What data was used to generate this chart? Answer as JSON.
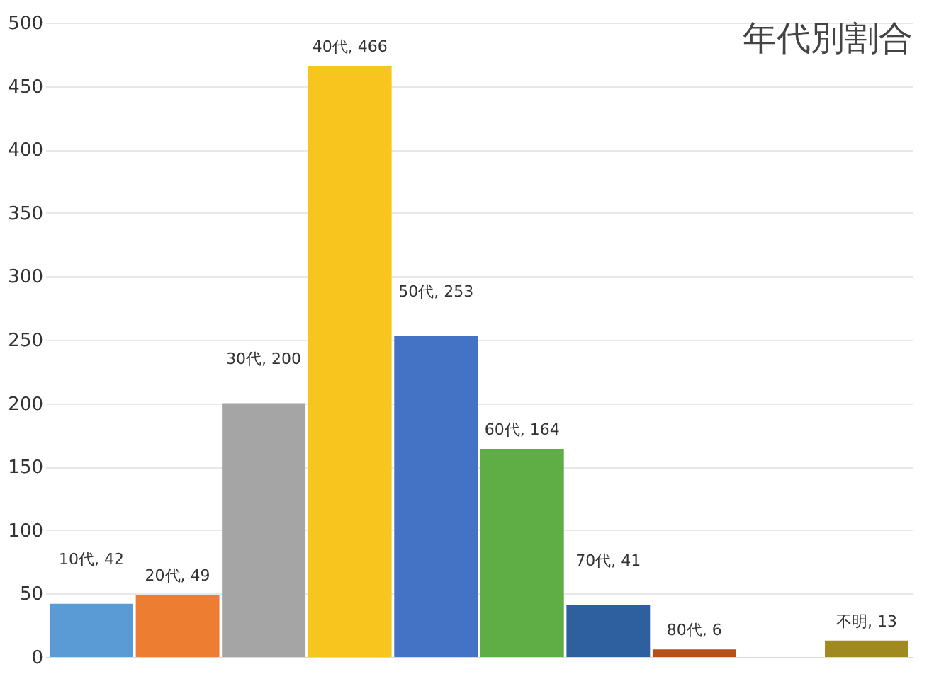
{
  "chart_data": {
    "type": "bar",
    "title": "年代別割合",
    "categories": [
      null,
      null,
      null,
      null,
      null,
      null,
      null,
      null,
      null,
      null
    ],
    "values": [
      42,
      49,
      200,
      466,
      253,
      164,
      41,
      6,
      null,
      13
    ],
    "colors": [
      "#5b9bd5",
      "#ed7d31",
      "#a5a5a5",
      "#f7c51e",
      "#4472c4",
      "#5fae45",
      "#2e5f9e",
      "#b5501a",
      "#cccccc",
      "#a08a20"
    ],
    "value_labels": [
      "10代, 42",
      "20代, 49",
      "30代, 200",
      "40代, 466",
      "50代, 253",
      "60代, 164",
      "70代, 41",
      "80代, 6",
      null,
      "不明, 13"
    ],
    "ylim": [
      0,
      500
    ],
    "yticks": [
      0,
      50,
      100,
      150,
      200,
      250,
      300,
      350,
      400,
      450,
      500
    ],
    "grid": "y",
    "tick_labels": "y"
  }
}
